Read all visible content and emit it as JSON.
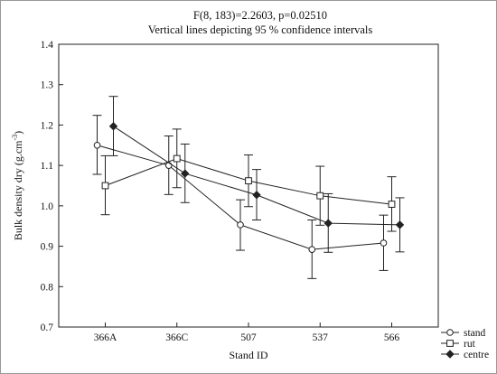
{
  "chart_data": {
    "type": "line",
    "title": "F(8, 183)=2.2603, p=0.02510",
    "subtitle": "Vertical lines depicting 95 % confidence intervals",
    "xlabel": "Stand ID",
    "ylabel_main": "Bulk density dry (g.cm",
    "ylabel_sup": "-3",
    "ylabel_tail": ")",
    "categories": [
      "366A",
      "366C",
      "507",
      "537",
      "566"
    ],
    "ylim": [
      0.7,
      1.4
    ],
    "yticks": [
      "0.7",
      "0.8",
      "0.9",
      "1.0",
      "1.1",
      "1.2",
      "1.3",
      "1.4"
    ],
    "legend_position": "bottom-right",
    "grid": false,
    "series": [
      {
        "name": "stand",
        "marker": "circle",
        "values": [
          1.15,
          1.1,
          0.953,
          0.892,
          0.908
        ],
        "ci_low": [
          1.078,
          1.028,
          0.89,
          0.82,
          0.84
        ],
        "ci_high": [
          1.224,
          1.173,
          1.015,
          0.965,
          0.977
        ]
      },
      {
        "name": "rut",
        "marker": "square",
        "values": [
          1.05,
          1.117,
          1.062,
          1.025,
          1.004
        ],
        "ci_low": [
          0.978,
          1.045,
          0.998,
          0.952,
          0.937
        ],
        "ci_high": [
          1.124,
          1.19,
          1.126,
          1.098,
          1.072
        ]
      },
      {
        "name": "centre",
        "marker": "diamond",
        "values": [
          1.197,
          1.08,
          1.027,
          0.957,
          0.953
        ],
        "ci_low": [
          1.124,
          1.008,
          0.965,
          0.885,
          0.886
        ],
        "ci_high": [
          1.271,
          1.153,
          1.09,
          1.03,
          1.02
        ]
      }
    ]
  }
}
